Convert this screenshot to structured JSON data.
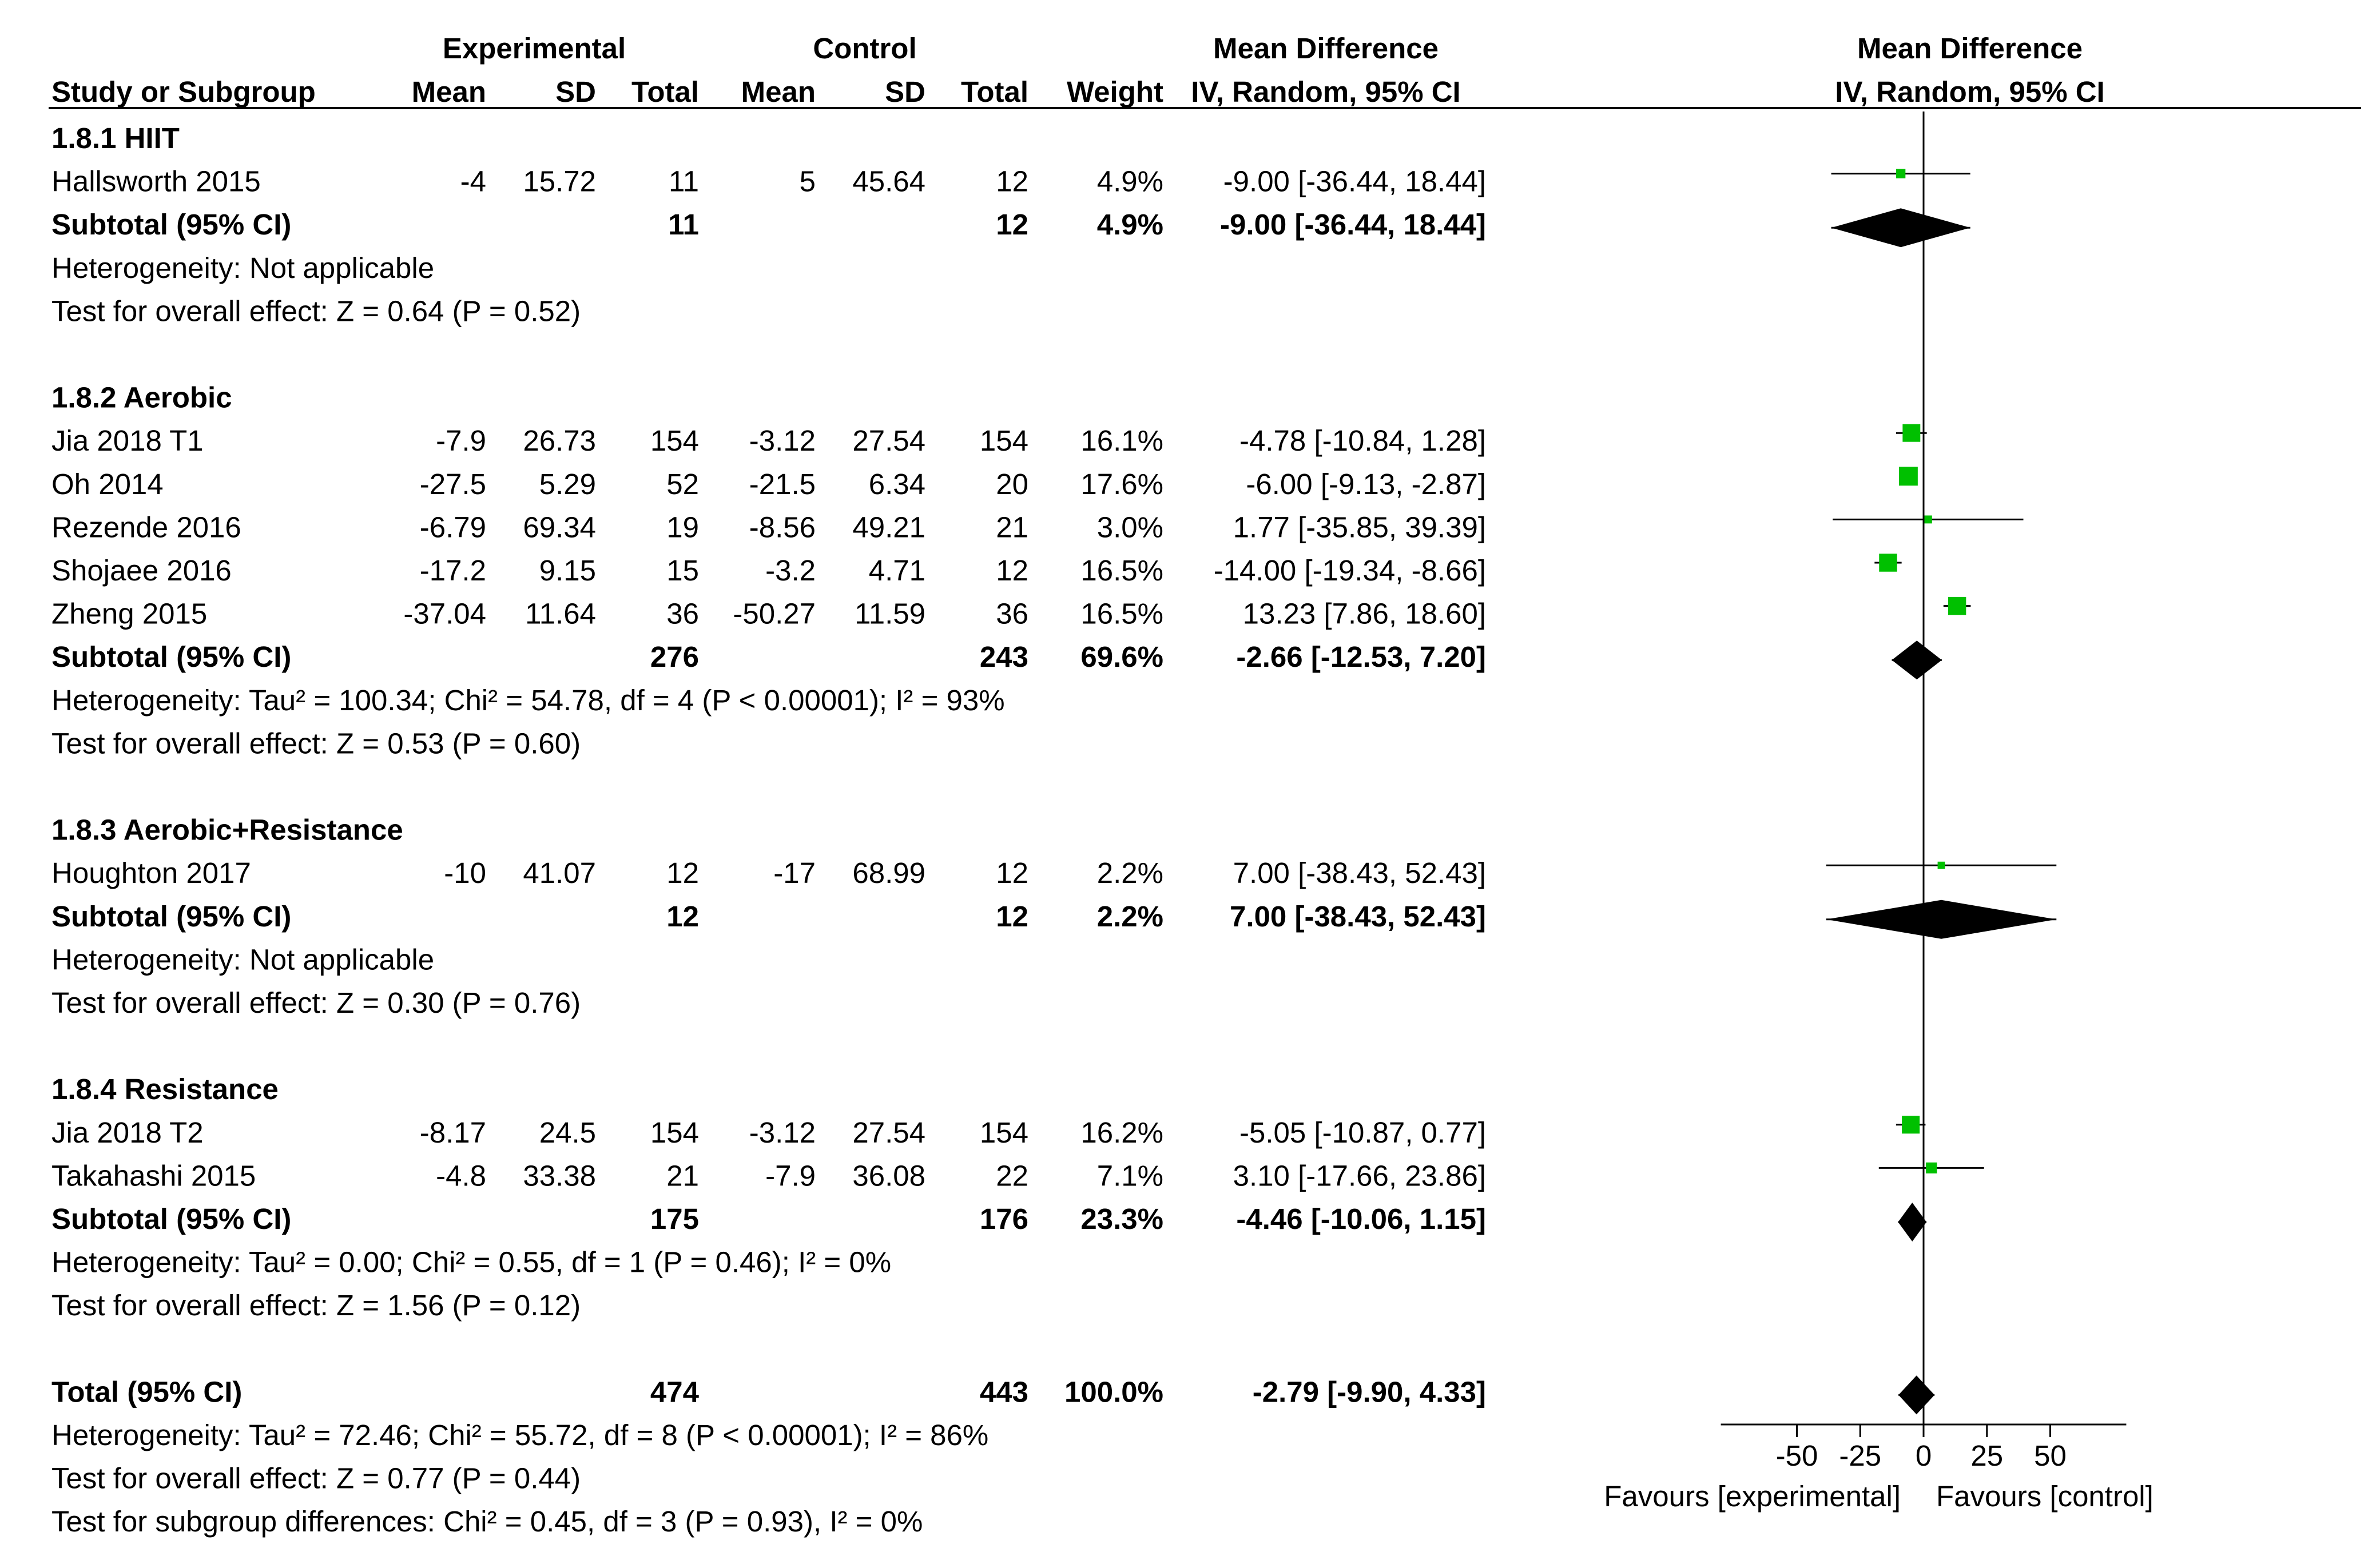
{
  "chart_data": {
    "type": "forest",
    "headers": {
      "group_experimental": "Experimental",
      "group_control": "Control",
      "group_md_table": "Mean Difference",
      "group_md_plot": "Mean Difference",
      "study": "Study or Subgroup",
      "mean": "Mean",
      "sd": "SD",
      "total": "Total",
      "weight": "Weight",
      "method": "IV, Random, 95% CI",
      "method_plot": "IV, Random, 95% CI"
    },
    "accent_color": "#00c000",
    "rows": [
      {
        "kind": "header",
        "label": "1.8.1 HIIT"
      },
      {
        "kind": "study",
        "label": "Hallsworth 2015",
        "e_mean": "-4",
        "e_sd": "15.72",
        "e_total": "11",
        "c_mean": "5",
        "c_sd": "45.64",
        "c_total": "12",
        "weight": "4.9%",
        "ci_text": "-9.00 [-36.44, 18.44]",
        "md": -9.0,
        "lo": -36.44,
        "hi": 18.44,
        "w": 4.9
      },
      {
        "kind": "subtotal",
        "label": "Subtotal (95% CI)",
        "e_total": "11",
        "c_total": "12",
        "weight": "4.9%",
        "ci_text": "-9.00 [-36.44, 18.44]",
        "md": -9.0,
        "lo": -36.44,
        "hi": 18.44
      },
      {
        "kind": "note",
        "label": "Heterogeneity: Not applicable"
      },
      {
        "kind": "note",
        "label": "Test for overall effect: Z = 0.64 (P = 0.52)"
      },
      {
        "kind": "blank"
      },
      {
        "kind": "header",
        "label": "1.8.2 Aerobic"
      },
      {
        "kind": "study",
        "label": "Jia 2018 T1",
        "e_mean": "-7.9",
        "e_sd": "26.73",
        "e_total": "154",
        "c_mean": "-3.12",
        "c_sd": "27.54",
        "c_total": "154",
        "weight": "16.1%",
        "ci_text": "-4.78 [-10.84, 1.28]",
        "md": -4.78,
        "lo": -10.84,
        "hi": 1.28,
        "w": 16.1
      },
      {
        "kind": "study",
        "label": "Oh 2014",
        "e_mean": "-27.5",
        "e_sd": "5.29",
        "e_total": "52",
        "c_mean": "-21.5",
        "c_sd": "6.34",
        "c_total": "20",
        "weight": "17.6%",
        "ci_text": "-6.00 [-9.13, -2.87]",
        "md": -6.0,
        "lo": -9.13,
        "hi": -2.87,
        "w": 17.6
      },
      {
        "kind": "study",
        "label": "Rezende 2016",
        "e_mean": "-6.79",
        "e_sd": "69.34",
        "e_total": "19",
        "c_mean": "-8.56",
        "c_sd": "49.21",
        "c_total": "21",
        "weight": "3.0%",
        "ci_text": "1.77 [-35.85, 39.39]",
        "md": 1.77,
        "lo": -35.85,
        "hi": 39.39,
        "w": 3.0
      },
      {
        "kind": "study",
        "label": "Shojaee 2016",
        "e_mean": "-17.2",
        "e_sd": "9.15",
        "e_total": "15",
        "c_mean": "-3.2",
        "c_sd": "4.71",
        "c_total": "12",
        "weight": "16.5%",
        "ci_text": "-14.00 [-19.34, -8.66]",
        "md": -14.0,
        "lo": -19.34,
        "hi": -8.66,
        "w": 16.5
      },
      {
        "kind": "study",
        "label": "Zheng  2015",
        "e_mean": "-37.04",
        "e_sd": "11.64",
        "e_total": "36",
        "c_mean": "-50.27",
        "c_sd": "11.59",
        "c_total": "36",
        "weight": "16.5%",
        "ci_text": "13.23 [7.86, 18.60]",
        "md": 13.23,
        "lo": 7.86,
        "hi": 18.6,
        "w": 16.5
      },
      {
        "kind": "subtotal",
        "label": "Subtotal (95% CI)",
        "e_total": "276",
        "c_total": "243",
        "weight": "69.6%",
        "ci_text": "-2.66 [-12.53, 7.20]",
        "md": -2.66,
        "lo": -12.53,
        "hi": 7.2
      },
      {
        "kind": "note",
        "label": "Heterogeneity: Tau² = 100.34; Chi² = 54.78, df = 4 (P < 0.00001); I² = 93%"
      },
      {
        "kind": "note",
        "label": "Test for overall effect: Z = 0.53 (P = 0.60)"
      },
      {
        "kind": "blank"
      },
      {
        "kind": "header",
        "label": "1.8.3 Aerobic+Resistance"
      },
      {
        "kind": "study",
        "label": "Houghton 2017",
        "e_mean": "-10",
        "e_sd": "41.07",
        "e_total": "12",
        "c_mean": "-17",
        "c_sd": "68.99",
        "c_total": "12",
        "weight": "2.2%",
        "ci_text": "7.00 [-38.43, 52.43]",
        "md": 7.0,
        "lo": -38.43,
        "hi": 52.43,
        "w": 2.2
      },
      {
        "kind": "subtotal",
        "label": "Subtotal (95% CI)",
        "e_total": "12",
        "c_total": "12",
        "weight": "2.2%",
        "ci_text": "7.00 [-38.43, 52.43]",
        "md": 7.0,
        "lo": -38.43,
        "hi": 52.43
      },
      {
        "kind": "note",
        "label": "Heterogeneity: Not applicable"
      },
      {
        "kind": "note",
        "label": "Test for overall effect: Z = 0.30 (P = 0.76)"
      },
      {
        "kind": "blank"
      },
      {
        "kind": "header",
        "label": "1.8.4 Resistance"
      },
      {
        "kind": "study",
        "label": "Jia 2018 T2",
        "e_mean": "-8.17",
        "e_sd": "24.5",
        "e_total": "154",
        "c_mean": "-3.12",
        "c_sd": "27.54",
        "c_total": "154",
        "weight": "16.2%",
        "ci_text": "-5.05 [-10.87, 0.77]",
        "md": -5.05,
        "lo": -10.87,
        "hi": 0.77,
        "w": 16.2
      },
      {
        "kind": "study",
        "label": "Takahashi 2015",
        "e_mean": "-4.8",
        "e_sd": "33.38",
        "e_total": "21",
        "c_mean": "-7.9",
        "c_sd": "36.08",
        "c_total": "22",
        "weight": "7.1%",
        "ci_text": "3.10 [-17.66, 23.86]",
        "md": 3.1,
        "lo": -17.66,
        "hi": 23.86,
        "w": 7.1
      },
      {
        "kind": "subtotal",
        "label": "Subtotal (95% CI)",
        "e_total": "175",
        "c_total": "176",
        "weight": "23.3%",
        "ci_text": "-4.46 [-10.06, 1.15]",
        "md": -4.46,
        "lo": -10.06,
        "hi": 1.15
      },
      {
        "kind": "note",
        "label": "Heterogeneity: Tau² = 0.00; Chi² = 0.55, df = 1 (P = 0.46); I² = 0%"
      },
      {
        "kind": "note",
        "label": "Test for overall effect: Z = 1.56 (P = 0.12)"
      },
      {
        "kind": "blank"
      },
      {
        "kind": "total",
        "label": "Total (95% CI)",
        "e_total": "474",
        "c_total": "443",
        "weight": "100.0%",
        "ci_text": "-2.79 [-9.90, 4.33]",
        "md": -2.79,
        "lo": -9.9,
        "hi": 4.33
      },
      {
        "kind": "note",
        "label": "Heterogeneity: Tau² = 72.46; Chi² = 55.72, df = 8 (P < 0.00001); I² = 86%"
      },
      {
        "kind": "note",
        "label": "Test for overall effect: Z = 0.77 (P = 0.44)"
      },
      {
        "kind": "note",
        "label": "Test for subgroup differences: Chi² = 0.45, df = 3 (P = 0.93), I² = 0%"
      }
    ],
    "axis": {
      "xlim": [
        -80,
        80
      ],
      "ticks": [
        -50,
        -25,
        0,
        25,
        50
      ],
      "tick_labels": [
        "-50",
        "-25",
        "0",
        "25",
        "50"
      ],
      "favours_left": "Favours [experimental]",
      "favours_right": "Favours [control]"
    }
  }
}
